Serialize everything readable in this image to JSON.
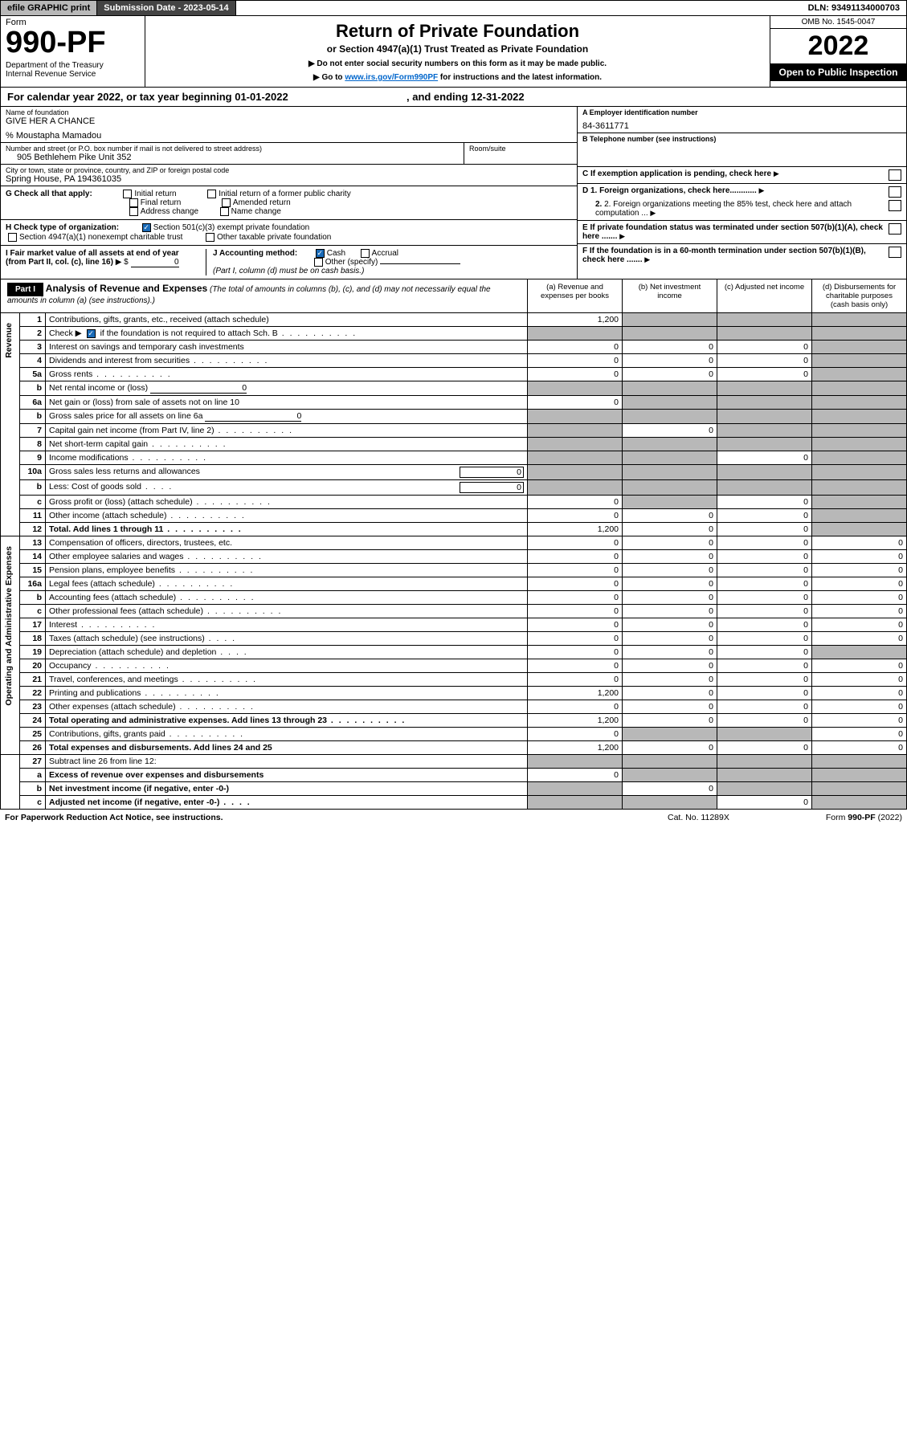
{
  "topbar": {
    "efile": "efile GRAPHIC print",
    "submission": "Submission Date - 2023-05-14",
    "dln": "DLN: 93491134000703"
  },
  "header": {
    "form_label": "Form",
    "form_no": "990-PF",
    "dept": "Department of the Treasury\nInternal Revenue Service",
    "title": "Return of Private Foundation",
    "subtitle": "or Section 4947(a)(1) Trust Treated as Private Foundation",
    "instr1": "▶ Do not enter social security numbers on this form as it may be made public.",
    "instr2_pre": "▶ Go to ",
    "instr2_link": "www.irs.gov/Form990PF",
    "instr2_post": " for instructions and the latest information.",
    "omb": "OMB No. 1545-0047",
    "year": "2022",
    "open": "Open to Public Inspection"
  },
  "calyear": {
    "text_a": "For calendar year 2022, or tax year beginning 01-01-2022",
    "text_b": ", and ending 12-31-2022"
  },
  "info": {
    "name_lbl": "Name of foundation",
    "name": "GIVE HER A CHANCE",
    "care_of": "% Moustapha Mamadou",
    "addr_lbl": "Number and street (or P.O. box number if mail is not delivered to street address)",
    "addr": "905 Bethlehem Pike Unit 352",
    "room_lbl": "Room/suite",
    "city_lbl": "City or town, state or province, country, and ZIP or foreign postal code",
    "city": "Spring House, PA  194361035",
    "a_lbl": "A Employer identification number",
    "a_val": "84-3611771",
    "b_lbl": "B Telephone number (see instructions)",
    "c_lbl": "C If exemption application is pending, check here",
    "g_lbl": "G Check all that apply:",
    "g_opts": [
      "Initial return",
      "Initial return of a former public charity",
      "Final return",
      "Amended return",
      "Address change",
      "Name change"
    ],
    "h_lbl": "H Check type of organization:",
    "h1": "Section 501(c)(3) exempt private foundation",
    "h2": "Section 4947(a)(1) nonexempt charitable trust",
    "h3": "Other taxable private foundation",
    "i_lbl": "I Fair market value of all assets at end of year (from Part II, col. (c), line 16)",
    "i_prefix": "▶ $",
    "i_val": "0",
    "j_lbl": "J Accounting method:",
    "j1": "Cash",
    "j2": "Accrual",
    "j3": "Other (specify)",
    "j_note": "(Part I, column (d) must be on cash basis.)",
    "d1": "D 1. Foreign organizations, check here............",
    "d2": "2. Foreign organizations meeting the 85% test, check here and attach computation ...",
    "e_lbl": "E  If private foundation status was terminated under section 507(b)(1)(A), check here .......",
    "f_lbl": "F  If the foundation is in a 60-month termination under section 507(b)(1)(B), check here ......."
  },
  "part1": {
    "label": "Part I",
    "title": "Analysis of Revenue and Expenses",
    "note": " (The total of amounts in columns (b), (c), and (d) may not necessarily equal the amounts in column (a) (see instructions).)",
    "col_a": "(a)   Revenue and expenses per books",
    "col_b": "(b)   Net investment income",
    "col_c": "(c)   Adjusted net income",
    "col_d": "(d)   Disbursements for charitable purposes (cash basis only)"
  },
  "sections": {
    "revenue": "Revenue",
    "expenses": "Operating and Administrative Expenses"
  },
  "rows": [
    {
      "n": "1",
      "d": "Contributions, gifts, grants, etc., received (attach schedule)",
      "a": "1,200",
      "bg": true,
      "cg": true,
      "dg": true
    },
    {
      "n": "2",
      "d_pre": "Check ▶ ",
      "d_cb": true,
      "d_post": " if the foundation is not required to attach Sch. B",
      "dots": true,
      "ag": true,
      "bg": true,
      "cg": true,
      "dg": true
    },
    {
      "n": "3",
      "d": "Interest on savings and temporary cash investments",
      "a": "0",
      "b": "0",
      "c": "0",
      "dg": true
    },
    {
      "n": "4",
      "d": "Dividends and interest from securities",
      "dots": true,
      "a": "0",
      "b": "0",
      "c": "0",
      "dg": true
    },
    {
      "n": "5a",
      "d": "Gross rents",
      "dots": true,
      "a": "0",
      "b": "0",
      "c": "0",
      "dg": true
    },
    {
      "n": "b",
      "d": "Net rental income or (loss)",
      "fill": "0",
      "ag": true,
      "bg": true,
      "cg": true,
      "dg": true
    },
    {
      "n": "6a",
      "d": "Net gain or (loss) from sale of assets not on line 10",
      "a": "0",
      "bg": true,
      "cg": true,
      "dg": true
    },
    {
      "n": "b",
      "d": "Gross sales price for all assets on line 6a",
      "fill": "0",
      "ag": true,
      "bg": true,
      "cg": true,
      "dg": true
    },
    {
      "n": "7",
      "d": "Capital gain net income (from Part IV, line 2)",
      "dots": true,
      "ag": true,
      "b": "0",
      "cg": true,
      "dg": true
    },
    {
      "n": "8",
      "d": "Net short-term capital gain",
      "dots": true,
      "ag": true,
      "bg": true,
      "cg": true,
      "dg": true
    },
    {
      "n": "9",
      "d": "Income modifications",
      "dots": true,
      "ag": true,
      "bg": true,
      "c": "0",
      "dg": true
    },
    {
      "n": "10a",
      "d": "Gross sales less returns and allowances",
      "box": "0",
      "ag": true,
      "bg": true,
      "cg": true,
      "dg": true
    },
    {
      "n": "b",
      "d": "Less: Cost of goods sold",
      "dots_s": true,
      "box": "0",
      "ag": true,
      "bg": true,
      "cg": true,
      "dg": true
    },
    {
      "n": "c",
      "d": "Gross profit or (loss) (attach schedule)",
      "dots": true,
      "a": "0",
      "bg": true,
      "c": "0",
      "dg": true
    },
    {
      "n": "11",
      "d": "Other income (attach schedule)",
      "dots": true,
      "a": "0",
      "b": "0",
      "c": "0",
      "dg": true
    },
    {
      "n": "12",
      "d": "Total. Add lines 1 through 11",
      "dots": true,
      "bold": true,
      "a": "1,200",
      "b": "0",
      "c": "0",
      "dg": true
    }
  ],
  "exp_rows": [
    {
      "n": "13",
      "d": "Compensation of officers, directors, trustees, etc.",
      "a": "0",
      "b": "0",
      "c": "0",
      "dd": "0"
    },
    {
      "n": "14",
      "d": "Other employee salaries and wages",
      "dots": true,
      "a": "0",
      "b": "0",
      "c": "0",
      "dd": "0"
    },
    {
      "n": "15",
      "d": "Pension plans, employee benefits",
      "dots": true,
      "a": "0",
      "b": "0",
      "c": "0",
      "dd": "0"
    },
    {
      "n": "16a",
      "d": "Legal fees (attach schedule)",
      "dots": true,
      "a": "0",
      "b": "0",
      "c": "0",
      "dd": "0"
    },
    {
      "n": "b",
      "d": "Accounting fees (attach schedule)",
      "dots": true,
      "a": "0",
      "b": "0",
      "c": "0",
      "dd": "0"
    },
    {
      "n": "c",
      "d": "Other professional fees (attach schedule)",
      "dots": true,
      "a": "0",
      "b": "0",
      "c": "0",
      "dd": "0"
    },
    {
      "n": "17",
      "d": "Interest",
      "dots": true,
      "a": "0",
      "b": "0",
      "c": "0",
      "dd": "0"
    },
    {
      "n": "18",
      "d": "Taxes (attach schedule) (see instructions)",
      "dots_s": true,
      "a": "0",
      "b": "0",
      "c": "0",
      "dd": "0"
    },
    {
      "n": "19",
      "d": "Depreciation (attach schedule) and depletion",
      "dots_s": true,
      "a": "0",
      "b": "0",
      "c": "0",
      "dg": true
    },
    {
      "n": "20",
      "d": "Occupancy",
      "dots": true,
      "a": "0",
      "b": "0",
      "c": "0",
      "dd": "0"
    },
    {
      "n": "21",
      "d": "Travel, conferences, and meetings",
      "dots": true,
      "a": "0",
      "b": "0",
      "c": "0",
      "dd": "0"
    },
    {
      "n": "22",
      "d": "Printing and publications",
      "dots": true,
      "a": "1,200",
      "b": "0",
      "c": "0",
      "dd": "0"
    },
    {
      "n": "23",
      "d": "Other expenses (attach schedule)",
      "dots": true,
      "a": "0",
      "b": "0",
      "c": "0",
      "dd": "0"
    },
    {
      "n": "24",
      "d": "Total operating and administrative expenses. Add lines 13 through 23",
      "dots": true,
      "bold": true,
      "a": "1,200",
      "b": "0",
      "c": "0",
      "dd": "0"
    },
    {
      "n": "25",
      "d": "Contributions, gifts, grants paid",
      "dots": true,
      "a": "0",
      "bg": true,
      "cg": true,
      "dd": "0"
    },
    {
      "n": "26",
      "d": "Total expenses and disbursements. Add lines 24 and 25",
      "bold": true,
      "a": "1,200",
      "b": "0",
      "c": "0",
      "dd": "0"
    }
  ],
  "sub_rows": [
    {
      "n": "27",
      "d": "Subtract line 26 from line 12:",
      "ag": true,
      "bg": true,
      "cg": true,
      "dg": true
    },
    {
      "n": "a",
      "d": "Excess of revenue over expenses and disbursements",
      "bold": true,
      "a": "0",
      "bg": true,
      "cg": true,
      "dg": true
    },
    {
      "n": "b",
      "d": "Net investment income (if negative, enter -0-)",
      "bold": true,
      "ag": true,
      "b": "0",
      "cg": true,
      "dg": true
    },
    {
      "n": "c",
      "d": "Adjusted net income (if negative, enter -0-)",
      "dots_s": true,
      "bold": true,
      "ag": true,
      "bg": true,
      "c": "0",
      "dg": true
    }
  ],
  "footer": {
    "left": "For Paperwork Reduction Act Notice, see instructions.",
    "mid": "Cat. No. 11289X",
    "right": "Form 990-PF (2022)"
  }
}
